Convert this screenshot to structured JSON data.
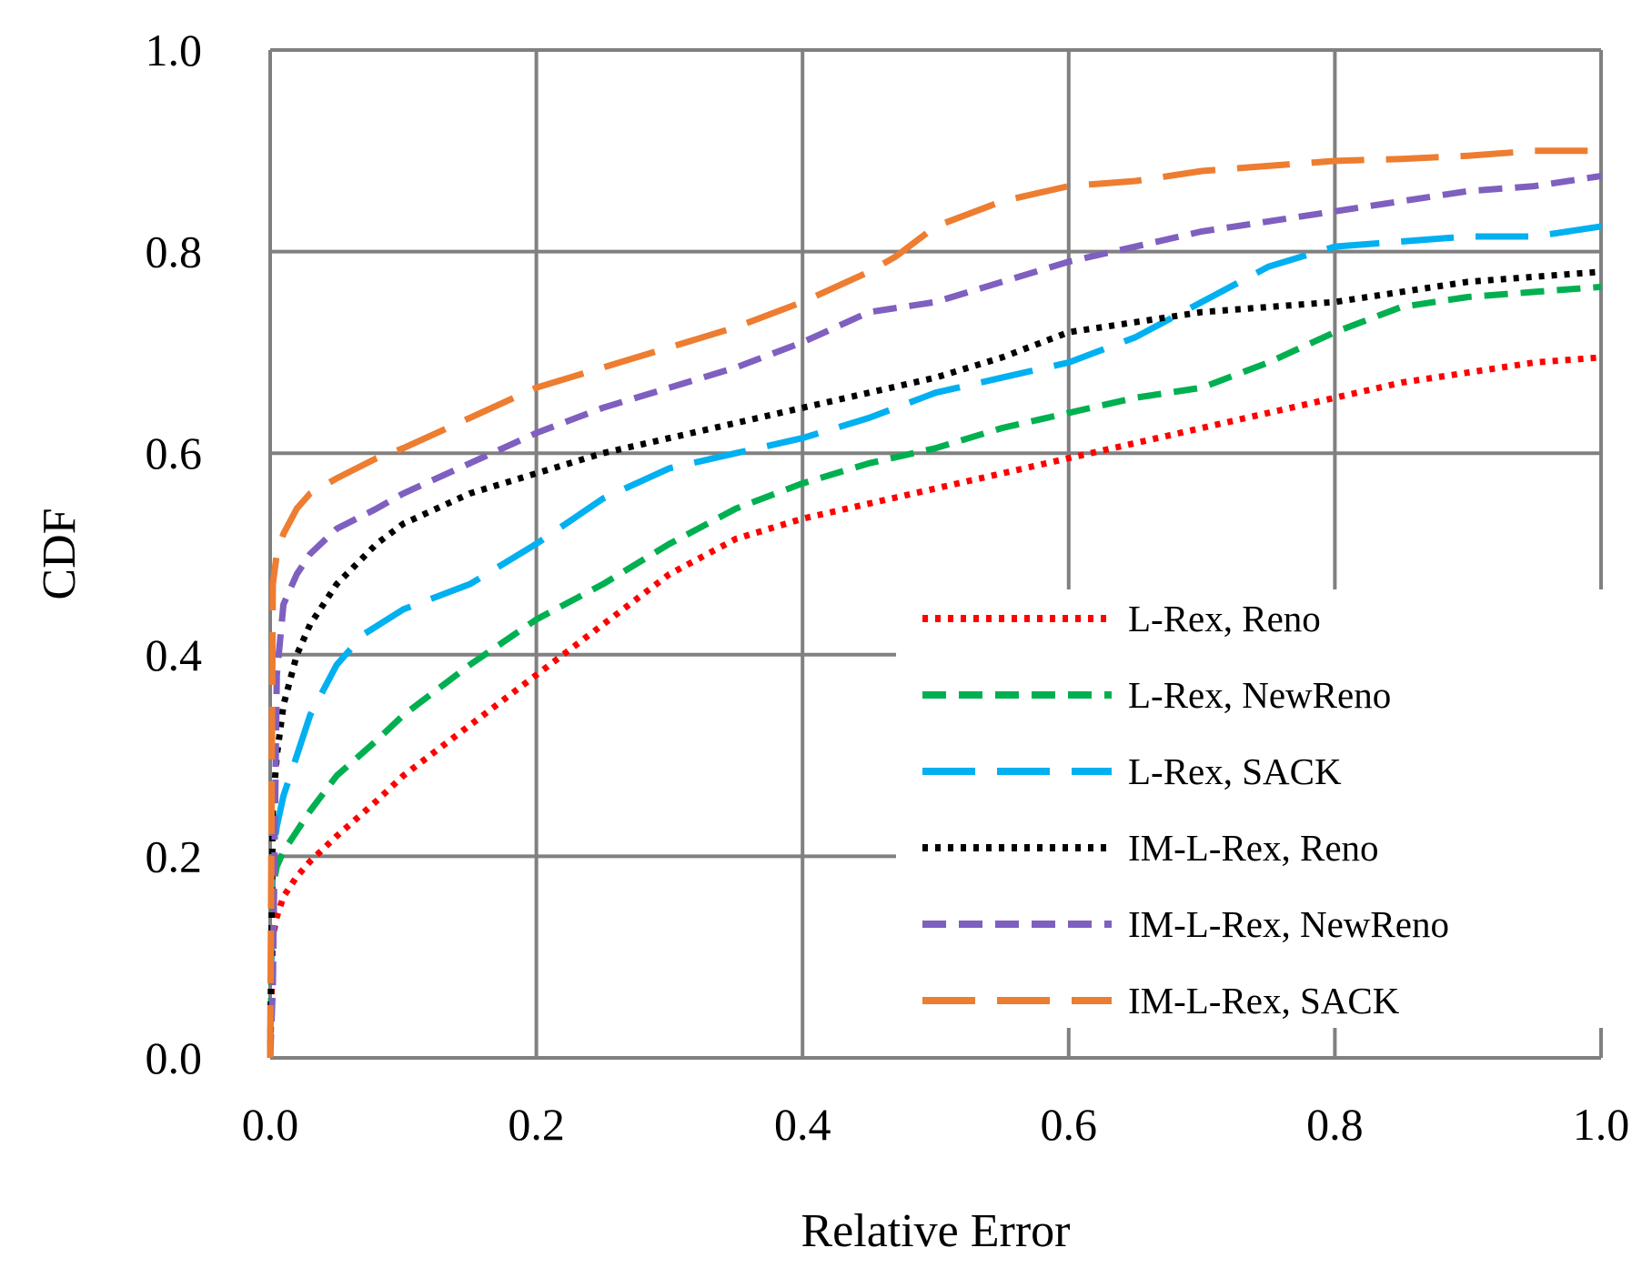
{
  "chart_data": {
    "type": "line",
    "title": "",
    "xlabel": "Relative Error",
    "ylabel": "CDF",
    "xlim": [
      0.0,
      1.0
    ],
    "ylim": [
      0.0,
      1.0
    ],
    "xticks": [
      "0.0",
      "0.2",
      "0.4",
      "0.6",
      "0.8",
      "1.0"
    ],
    "yticks": [
      "0.0",
      "0.2",
      "0.4",
      "0.6",
      "0.8",
      "1.0"
    ],
    "grid": true,
    "legend_position": "lower-right",
    "series": [
      {
        "name": "L-Rex, Reno",
        "color": "#ff0000",
        "dash": "dotted",
        "x": [
          0,
          0.002,
          0.005,
          0.01,
          0.02,
          0.03,
          0.05,
          0.08,
          0.1,
          0.13,
          0.16,
          0.2,
          0.25,
          0.3,
          0.35,
          0.4,
          0.45,
          0.5,
          0.55,
          0.6,
          0.65,
          0.7,
          0.75,
          0.8,
          0.85,
          0.9,
          0.95,
          1.0
        ],
        "y": [
          0,
          0.12,
          0.14,
          0.16,
          0.18,
          0.195,
          0.22,
          0.255,
          0.28,
          0.31,
          0.34,
          0.38,
          0.43,
          0.48,
          0.515,
          0.535,
          0.55,
          0.565,
          0.58,
          0.595,
          0.61,
          0.625,
          0.64,
          0.655,
          0.67,
          0.68,
          0.69,
          0.695
        ]
      },
      {
        "name": "L-Rex, NewReno",
        "color": "#00b050",
        "dash": "dashed",
        "x": [
          0,
          0.002,
          0.005,
          0.01,
          0.02,
          0.03,
          0.05,
          0.08,
          0.1,
          0.15,
          0.2,
          0.25,
          0.3,
          0.35,
          0.4,
          0.45,
          0.5,
          0.55,
          0.6,
          0.65,
          0.7,
          0.75,
          0.8,
          0.85,
          0.9,
          0.95,
          1.0
        ],
        "y": [
          0,
          0.17,
          0.19,
          0.205,
          0.225,
          0.245,
          0.28,
          0.315,
          0.34,
          0.39,
          0.435,
          0.47,
          0.51,
          0.545,
          0.57,
          0.59,
          0.605,
          0.625,
          0.64,
          0.655,
          0.665,
          0.69,
          0.72,
          0.745,
          0.755,
          0.76,
          0.765
        ]
      },
      {
        "name": "L-Rex, SACK",
        "color": "#00b0f0",
        "dash": "longdash",
        "x": [
          0,
          0.002,
          0.005,
          0.01,
          0.02,
          0.03,
          0.05,
          0.07,
          0.1,
          0.15,
          0.2,
          0.25,
          0.3,
          0.35,
          0.4,
          0.45,
          0.5,
          0.55,
          0.6,
          0.65,
          0.7,
          0.75,
          0.8,
          0.85,
          0.9,
          0.95,
          1.0
        ],
        "y": [
          0,
          0.2,
          0.23,
          0.26,
          0.3,
          0.34,
          0.39,
          0.42,
          0.445,
          0.47,
          0.51,
          0.555,
          0.585,
          0.6,
          0.615,
          0.635,
          0.66,
          0.675,
          0.69,
          0.715,
          0.75,
          0.785,
          0.805,
          0.81,
          0.815,
          0.815,
          0.825
        ]
      },
      {
        "name": "IM-L-Rex, Reno",
        "color": "#000000",
        "dash": "dotted",
        "x": [
          0,
          0.002,
          0.005,
          0.01,
          0.02,
          0.03,
          0.05,
          0.08,
          0.1,
          0.15,
          0.2,
          0.25,
          0.3,
          0.35,
          0.4,
          0.45,
          0.5,
          0.55,
          0.6,
          0.65,
          0.7,
          0.75,
          0.8,
          0.85,
          0.9,
          0.95,
          1.0
        ],
        "y": [
          0,
          0.25,
          0.3,
          0.35,
          0.4,
          0.43,
          0.47,
          0.51,
          0.53,
          0.56,
          0.58,
          0.6,
          0.615,
          0.63,
          0.645,
          0.66,
          0.675,
          0.695,
          0.72,
          0.73,
          0.74,
          0.745,
          0.75,
          0.76,
          0.77,
          0.775,
          0.78
        ]
      },
      {
        "name": "IM-L-Rex, NewReno",
        "color": "#7f5fbf",
        "dash": "dashed",
        "x": [
          0,
          0.002,
          0.005,
          0.01,
          0.02,
          0.03,
          0.05,
          0.08,
          0.1,
          0.15,
          0.2,
          0.25,
          0.3,
          0.35,
          0.4,
          0.45,
          0.5,
          0.55,
          0.6,
          0.65,
          0.7,
          0.75,
          0.8,
          0.85,
          0.9,
          0.95,
          1.0
        ],
        "y": [
          0,
          0.07,
          0.38,
          0.45,
          0.48,
          0.5,
          0.525,
          0.545,
          0.56,
          0.59,
          0.62,
          0.645,
          0.665,
          0.685,
          0.71,
          0.74,
          0.75,
          0.77,
          0.79,
          0.805,
          0.82,
          0.83,
          0.84,
          0.85,
          0.86,
          0.865,
          0.875
        ]
      },
      {
        "name": "IM-L-Rex, SACK",
        "color": "#ed7d31",
        "dash": "longdash",
        "x": [
          0,
          0.002,
          0.005,
          0.01,
          0.02,
          0.03,
          0.05,
          0.08,
          0.1,
          0.15,
          0.2,
          0.25,
          0.3,
          0.35,
          0.4,
          0.45,
          0.47,
          0.5,
          0.55,
          0.6,
          0.65,
          0.7,
          0.75,
          0.8,
          0.85,
          0.9,
          0.95,
          1.0
        ],
        "y": [
          0,
          0.47,
          0.5,
          0.52,
          0.545,
          0.56,
          0.575,
          0.595,
          0.605,
          0.635,
          0.665,
          0.685,
          0.705,
          0.725,
          0.75,
          0.78,
          0.795,
          0.825,
          0.85,
          0.865,
          0.87,
          0.88,
          0.885,
          0.89,
          0.892,
          0.895,
          0.9,
          0.9
        ]
      }
    ]
  }
}
